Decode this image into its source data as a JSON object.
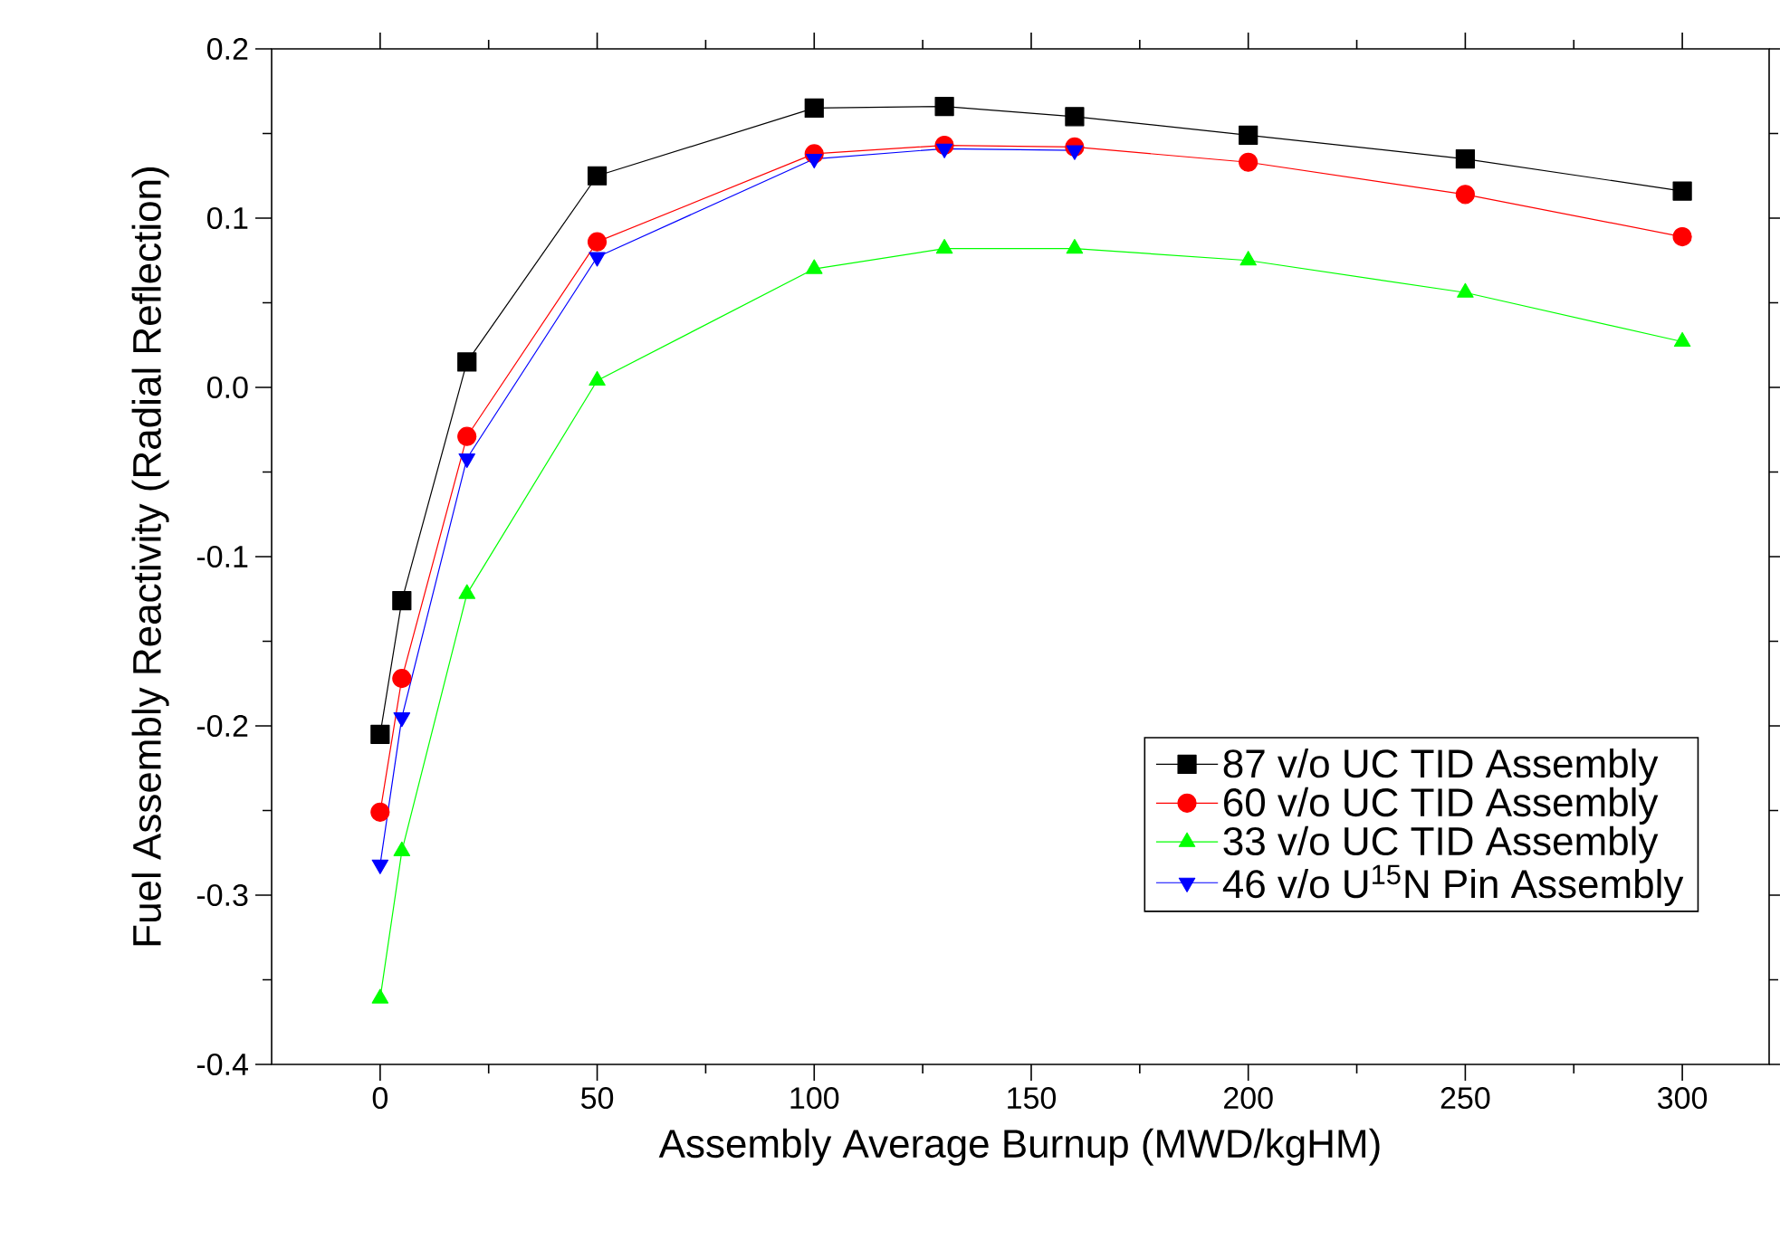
{
  "chart_data": {
    "type": "line",
    "xlabel": "Assembly Average Burnup (MWD/kgHM)",
    "ylabel": "Fuel Assembly Reactivity (Radial Reflection)",
    "xlim": [
      -25,
      320
    ],
    "ylim": [
      -0.4,
      0.2
    ],
    "xticks": [
      0,
      50,
      100,
      150,
      200,
      250,
      300
    ],
    "yticks": [
      {
        "value": -0.4,
        "label": "-0.4"
      },
      {
        "value": -0.3,
        "label": "-0.3"
      },
      {
        "value": -0.2,
        "label": "-0.2"
      },
      {
        "value": -0.1,
        "label": "-0.1"
      },
      {
        "value": 0,
        "label": "0.0"
      },
      {
        "value": 0.1,
        "label": "0.1"
      },
      {
        "value": 0.2,
        "label": "0.2"
      }
    ],
    "legend": "right",
    "grid": false,
    "series": [
      {
        "name": "87 v/o UC TID Assembly",
        "color": "#000000",
        "marker": "square",
        "x": [
          0,
          5,
          20,
          50,
          100,
          130,
          160,
          200,
          250,
          300
        ],
        "values": [
          -0.205,
          -0.126,
          0.015,
          0.125,
          0.165,
          0.166,
          0.16,
          0.149,
          0.135,
          0.116
        ]
      },
      {
        "name": "60 v/o UC TID Assembly",
        "color": "#ff0000",
        "marker": "circle",
        "x": [
          0,
          5,
          20,
          50,
          100,
          130,
          160,
          200,
          250,
          300
        ],
        "values": [
          -0.251,
          -0.172,
          -0.029,
          0.086,
          0.138,
          0.143,
          0.142,
          0.133,
          0.114,
          0.089
        ]
      },
      {
        "name": "33 v/o UC TID Assembly",
        "color": "#00ff00",
        "marker": "triangle",
        "x": [
          0,
          5,
          20,
          50,
          100,
          130,
          160,
          200,
          250,
          300
        ],
        "values": [
          -0.361,
          -0.274,
          -0.122,
          0.004,
          0.07,
          0.082,
          0.082,
          0.075,
          0.056,
          0.027
        ]
      },
      {
        "name": "46 v/o U$^{15}$N Pin Assembly",
        "color": "#0000ff",
        "marker": "triangle down",
        "x": [
          0,
          5,
          20,
          50,
          100,
          130,
          160
        ],
        "values": [
          -0.282,
          -0.195,
          -0.042,
          0.077,
          0.135,
          0.141,
          0.14
        ]
      }
    ]
  }
}
